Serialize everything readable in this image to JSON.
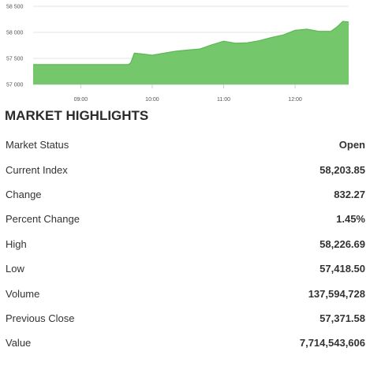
{
  "chart_data": {
    "type": "area",
    "title": "",
    "xlabel": "",
    "ylabel": "",
    "ylim": [
      57000,
      58500
    ],
    "yticks": [
      {
        "value": 57000,
        "label": "57 000"
      },
      {
        "value": 57500,
        "label": "57 500"
      },
      {
        "value": 58000,
        "label": "58 000"
      },
      {
        "value": 58500,
        "label": "58 500"
      }
    ],
    "xlim": [
      "08:20",
      "12:45"
    ],
    "xticks": [
      {
        "value": "09:00",
        "label": "09:00"
      },
      {
        "value": "10:00",
        "label": "10:00"
      },
      {
        "value": "11:00",
        "label": "11:00"
      },
      {
        "value": "12:00",
        "label": "12:00"
      }
    ],
    "grid": "horizontal",
    "legend": "none",
    "fill_color": "#74c76b",
    "line_color": "#5cb853",
    "points": [
      [
        "08:20",
        57380
      ],
      [
        "09:40",
        57380
      ],
      [
        "09:42",
        57420
      ],
      [
        "09:45",
        57600
      ],
      [
        "09:50",
        57590
      ],
      [
        "10:00",
        57560
      ],
      [
        "10:10",
        57600
      ],
      [
        "10:20",
        57640
      ],
      [
        "10:30",
        57660
      ],
      [
        "10:40",
        57680
      ],
      [
        "10:50",
        57760
      ],
      [
        "11:00",
        57830
      ],
      [
        "11:10",
        57790
      ],
      [
        "11:20",
        57800
      ],
      [
        "11:30",
        57840
      ],
      [
        "11:40",
        57900
      ],
      [
        "11:50",
        57950
      ],
      [
        "12:00",
        58040
      ],
      [
        "12:10",
        58060
      ],
      [
        "12:20",
        58020
      ],
      [
        "12:30",
        58020
      ],
      [
        "12:35",
        58100
      ],
      [
        "12:40",
        58210
      ],
      [
        "12:45",
        58200
      ]
    ]
  },
  "highlights": {
    "title": "MARKET HIGHLIGHTS",
    "rows": [
      {
        "label": "Market Status",
        "value": "Open"
      },
      {
        "label": "Current Index",
        "value": "58,203.85"
      },
      {
        "label": "Change",
        "value": "832.27"
      },
      {
        "label": "Percent Change",
        "value": "1.45%"
      },
      {
        "label": "High",
        "value": "58,226.69"
      },
      {
        "label": "Low",
        "value": "57,418.50"
      },
      {
        "label": "Volume",
        "value": "137,594,728"
      },
      {
        "label": "Previous Close",
        "value": "57,371.58"
      },
      {
        "label": "Value",
        "value": "7,714,543,606"
      }
    ]
  }
}
